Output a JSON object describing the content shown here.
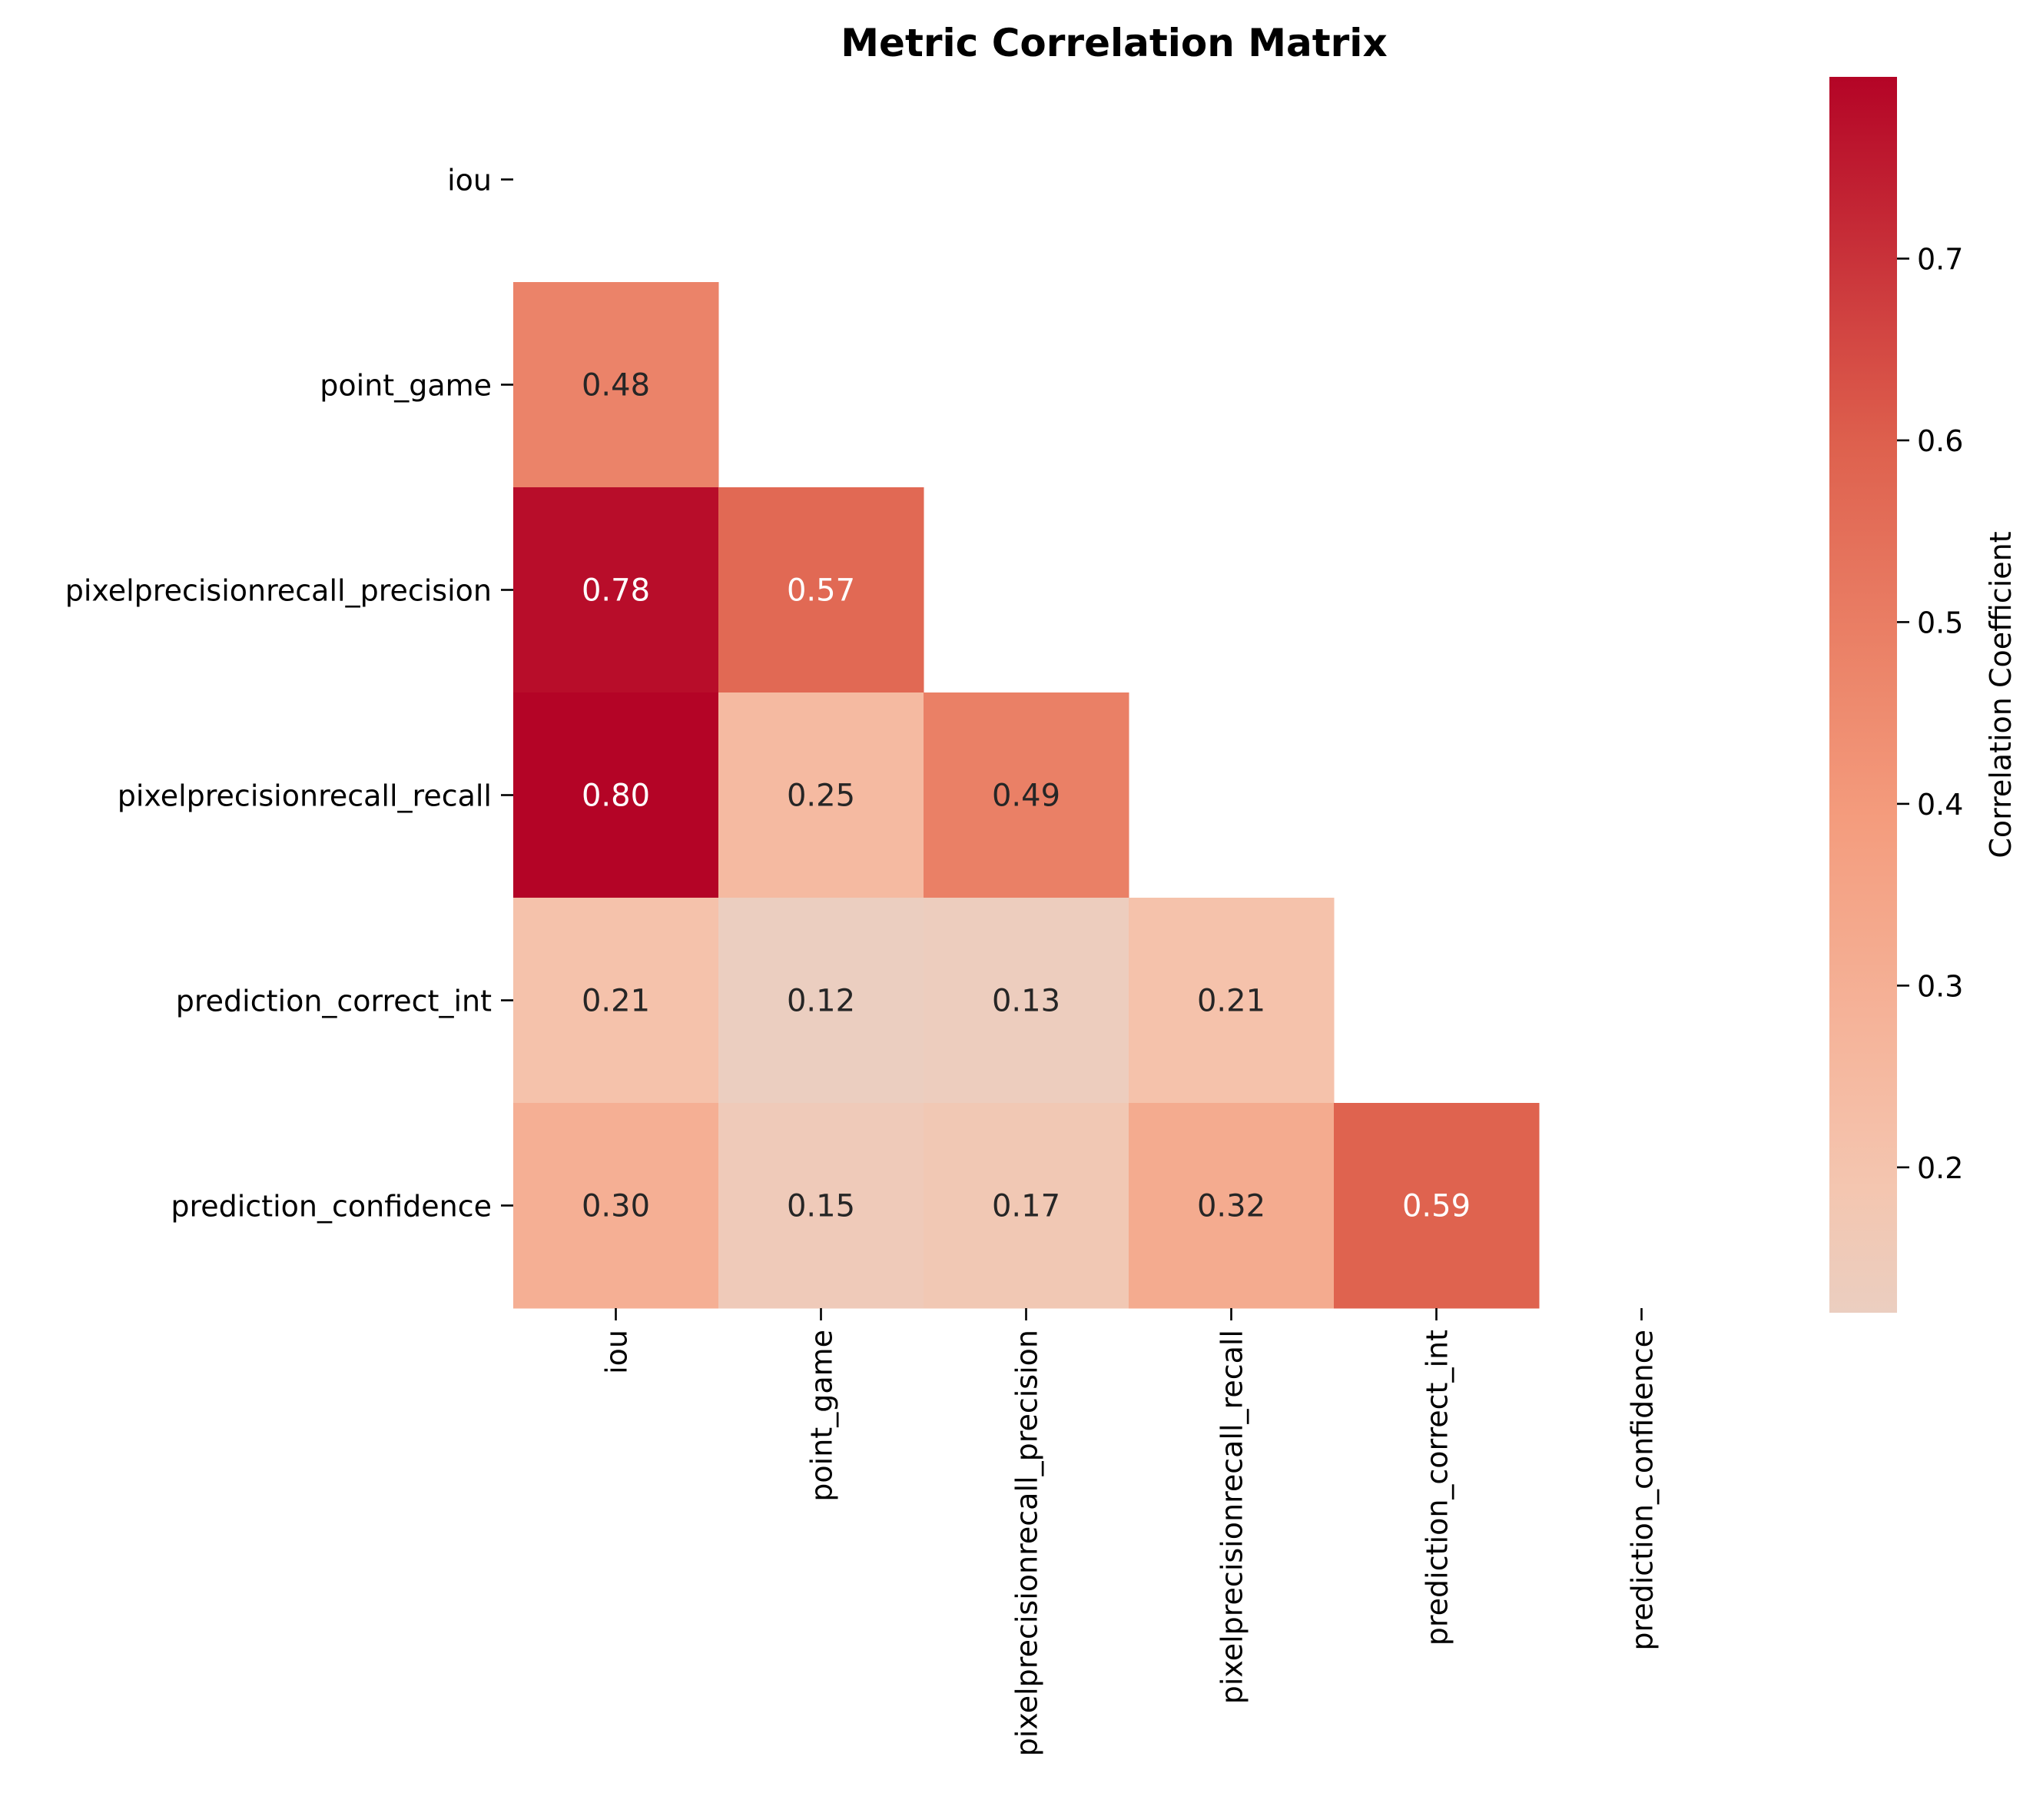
{
  "chart_data": {
    "type": "heatmap",
    "title": "Metric Correlation Matrix",
    "labels": [
      "iou",
      "point_game",
      "pixelprecisionrecall_precision",
      "pixelprecisionrecall_recall",
      "prediction_correct_int",
      "prediction_confidence"
    ],
    "mask": "upper-triangle",
    "cells": [
      {
        "row": 1,
        "col": 0,
        "value": 0.48,
        "label": "0.48"
      },
      {
        "row": 2,
        "col": 0,
        "value": 0.78,
        "label": "0.78"
      },
      {
        "row": 2,
        "col": 1,
        "value": 0.57,
        "label": "0.57"
      },
      {
        "row": 3,
        "col": 0,
        "value": 0.8,
        "label": "0.80"
      },
      {
        "row": 3,
        "col": 1,
        "value": 0.25,
        "label": "0.25"
      },
      {
        "row": 3,
        "col": 2,
        "value": 0.49,
        "label": "0.49"
      },
      {
        "row": 4,
        "col": 0,
        "value": 0.21,
        "label": "0.21"
      },
      {
        "row": 4,
        "col": 1,
        "value": 0.12,
        "label": "0.12"
      },
      {
        "row": 4,
        "col": 2,
        "value": 0.13,
        "label": "0.13"
      },
      {
        "row": 4,
        "col": 3,
        "value": 0.21,
        "label": "0.21"
      },
      {
        "row": 5,
        "col": 0,
        "value": 0.3,
        "label": "0.30"
      },
      {
        "row": 5,
        "col": 1,
        "value": 0.15,
        "label": "0.15"
      },
      {
        "row": 5,
        "col": 2,
        "value": 0.17,
        "label": "0.17"
      },
      {
        "row": 5,
        "col": 3,
        "value": 0.32,
        "label": "0.32"
      },
      {
        "row": 5,
        "col": 4,
        "value": 0.59,
        "label": "0.59"
      }
    ],
    "colorbar": {
      "label": "Correlation Coefficient",
      "range": [
        0.12,
        0.8
      ],
      "ticks": [
        "0.2",
        "0.3",
        "0.4",
        "0.5",
        "0.6",
        "0.7"
      ],
      "colormap": "coolwarm",
      "center": 0
    }
  }
}
